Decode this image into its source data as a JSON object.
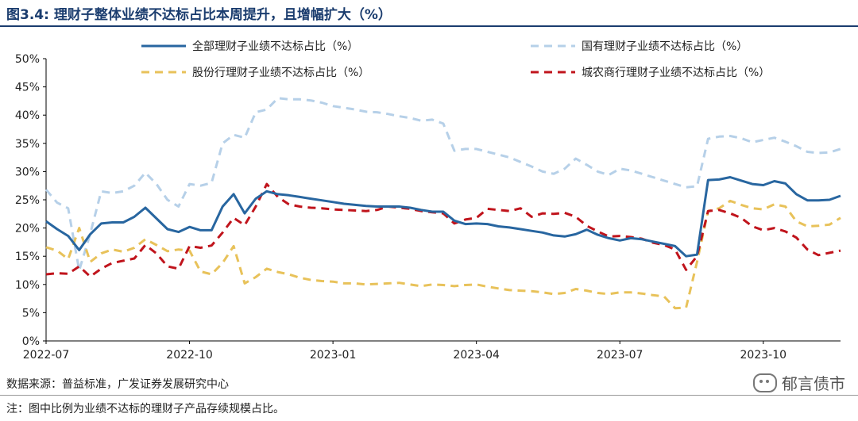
{
  "title": "图3.4:  理财子整体业绩不达标占比本周提升，且增幅扩大（%）",
  "footer": {
    "source": "数据来源：普益标准，广发证券发展研究中心",
    "note": "注：图中比例为业绩不达标的理财子产品存续规模占比。"
  },
  "watermark": {
    "text": "郁言债市",
    "icon": "wechat-icon"
  },
  "chart_data": {
    "type": "line",
    "ylim": [
      0,
      50
    ],
    "yticks": [
      "0%",
      "5%",
      "10%",
      "15%",
      "20%",
      "25%",
      "30%",
      "35%",
      "40%",
      "45%",
      "50%"
    ],
    "xticks": [
      {
        "label": "2022-07",
        "week": 0
      },
      {
        "label": "2022-10",
        "week": 13
      },
      {
        "label": "2023-01",
        "week": 26
      },
      {
        "label": "2023-04",
        "week": 39
      },
      {
        "label": "2023-07",
        "week": 52
      },
      {
        "label": "2023-10",
        "week": 65
      }
    ],
    "legend_position": "top",
    "grid": false,
    "series": [
      {
        "name": "全部理财子业绩不达标占比（%）",
        "color": "#2866a0",
        "style": "solid",
        "values": [
          21.2,
          19.8,
          18.6,
          16.1,
          18.9,
          20.8,
          21.0,
          21.0,
          22.0,
          23.6,
          21.7,
          19.8,
          19.3,
          20.2,
          19.6,
          19.6,
          23.8,
          26.0,
          22.6,
          25.2,
          26.5,
          26.0,
          25.8,
          25.5,
          25.2,
          24.9,
          24.6,
          24.3,
          24.1,
          23.9,
          23.8,
          23.8,
          23.8,
          23.6,
          23.2,
          22.9,
          22.9,
          21.3,
          20.7,
          20.8,
          20.7,
          20.3,
          20.1,
          19.8,
          19.5,
          19.2,
          18.7,
          18.5,
          18.9,
          19.7,
          18.8,
          18.2,
          17.8,
          18.2,
          18.0,
          17.6,
          17.2,
          16.8,
          15.0,
          15.3,
          28.5,
          28.6,
          29.0,
          28.4,
          27.8,
          27.6,
          28.3,
          27.9,
          26.0,
          24.9,
          24.9,
          25.0,
          25.7
        ]
      },
      {
        "name": "国有理财子业绩不达标占比（%）",
        "color": "#b6d0e8",
        "style": "dashed",
        "values": [
          26.8,
          24.5,
          23.5,
          12.5,
          19.0,
          26.5,
          26.2,
          26.5,
          27.5,
          29.8,
          27.8,
          25.0,
          23.8,
          27.8,
          27.5,
          28.0,
          35.0,
          36.5,
          36.0,
          40.5,
          41.0,
          43.0,
          42.8,
          42.8,
          42.6,
          42.2,
          41.6,
          41.3,
          41.0,
          40.6,
          40.5,
          40.2,
          39.8,
          39.5,
          39.0,
          39.2,
          38.5,
          33.7,
          34.0,
          34.0,
          33.5,
          33.0,
          32.5,
          31.7,
          30.9,
          30.0,
          29.6,
          30.5,
          32.3,
          31.2,
          30.0,
          29.4,
          30.5,
          30.2,
          29.6,
          29.0,
          28.4,
          27.8,
          27.2,
          27.4,
          35.8,
          36.2,
          36.3,
          35.9,
          35.2,
          35.6,
          36.0,
          35.3,
          34.5,
          33.5,
          33.3,
          33.4,
          34.0
        ]
      },
      {
        "name": "股份行理财子业绩不达标占比（%）",
        "color": "#e8c25a",
        "style": "dashed",
        "values": [
          16.6,
          16.0,
          14.5,
          20.0,
          14.0,
          15.5,
          16.2,
          15.8,
          16.5,
          18.0,
          17.0,
          15.9,
          16.2,
          16.0,
          12.3,
          11.8,
          13.8,
          16.8,
          10.2,
          11.3,
          12.8,
          12.2,
          11.8,
          11.2,
          10.8,
          10.6,
          10.5,
          10.2,
          10.2,
          10.0,
          10.1,
          10.2,
          10.3,
          10.0,
          9.7,
          10.0,
          9.9,
          9.7,
          9.9,
          10.0,
          9.6,
          9.3,
          9.0,
          8.9,
          8.8,
          8.6,
          8.3,
          8.5,
          9.2,
          8.9,
          8.5,
          8.3,
          8.6,
          8.6,
          8.4,
          8.1,
          7.9,
          5.8,
          5.9,
          14.0,
          23.0,
          23.5,
          24.8,
          24.1,
          23.5,
          23.3,
          24.2,
          23.8,
          21.2,
          20.3,
          20.4,
          20.6,
          21.8
        ]
      },
      {
        "name": "城农商行理财子业绩不达标占比（%）",
        "color": "#c0141c",
        "style": "dashed",
        "values": [
          11.8,
          12.0,
          11.9,
          13.2,
          11.4,
          12.8,
          13.8,
          14.2,
          14.6,
          17.0,
          15.5,
          13.2,
          12.8,
          16.8,
          16.5,
          16.9,
          19.2,
          21.8,
          20.5,
          23.8,
          27.8,
          25.5,
          24.2,
          23.8,
          23.6,
          23.5,
          23.3,
          23.2,
          23.1,
          23.0,
          23.2,
          23.8,
          23.6,
          23.4,
          23.0,
          22.8,
          22.6,
          20.8,
          21.5,
          21.8,
          23.4,
          23.2,
          23.0,
          23.5,
          22.0,
          22.6,
          22.5,
          22.7,
          22.0,
          20.4,
          19.4,
          18.5,
          18.6,
          18.4,
          18.1,
          17.4,
          17.0,
          16.2,
          12.6,
          15.0,
          23.0,
          23.2,
          22.6,
          21.8,
          20.3,
          19.6,
          20.0,
          19.4,
          18.3,
          16.2,
          15.2,
          15.6,
          16.0
        ]
      }
    ]
  }
}
